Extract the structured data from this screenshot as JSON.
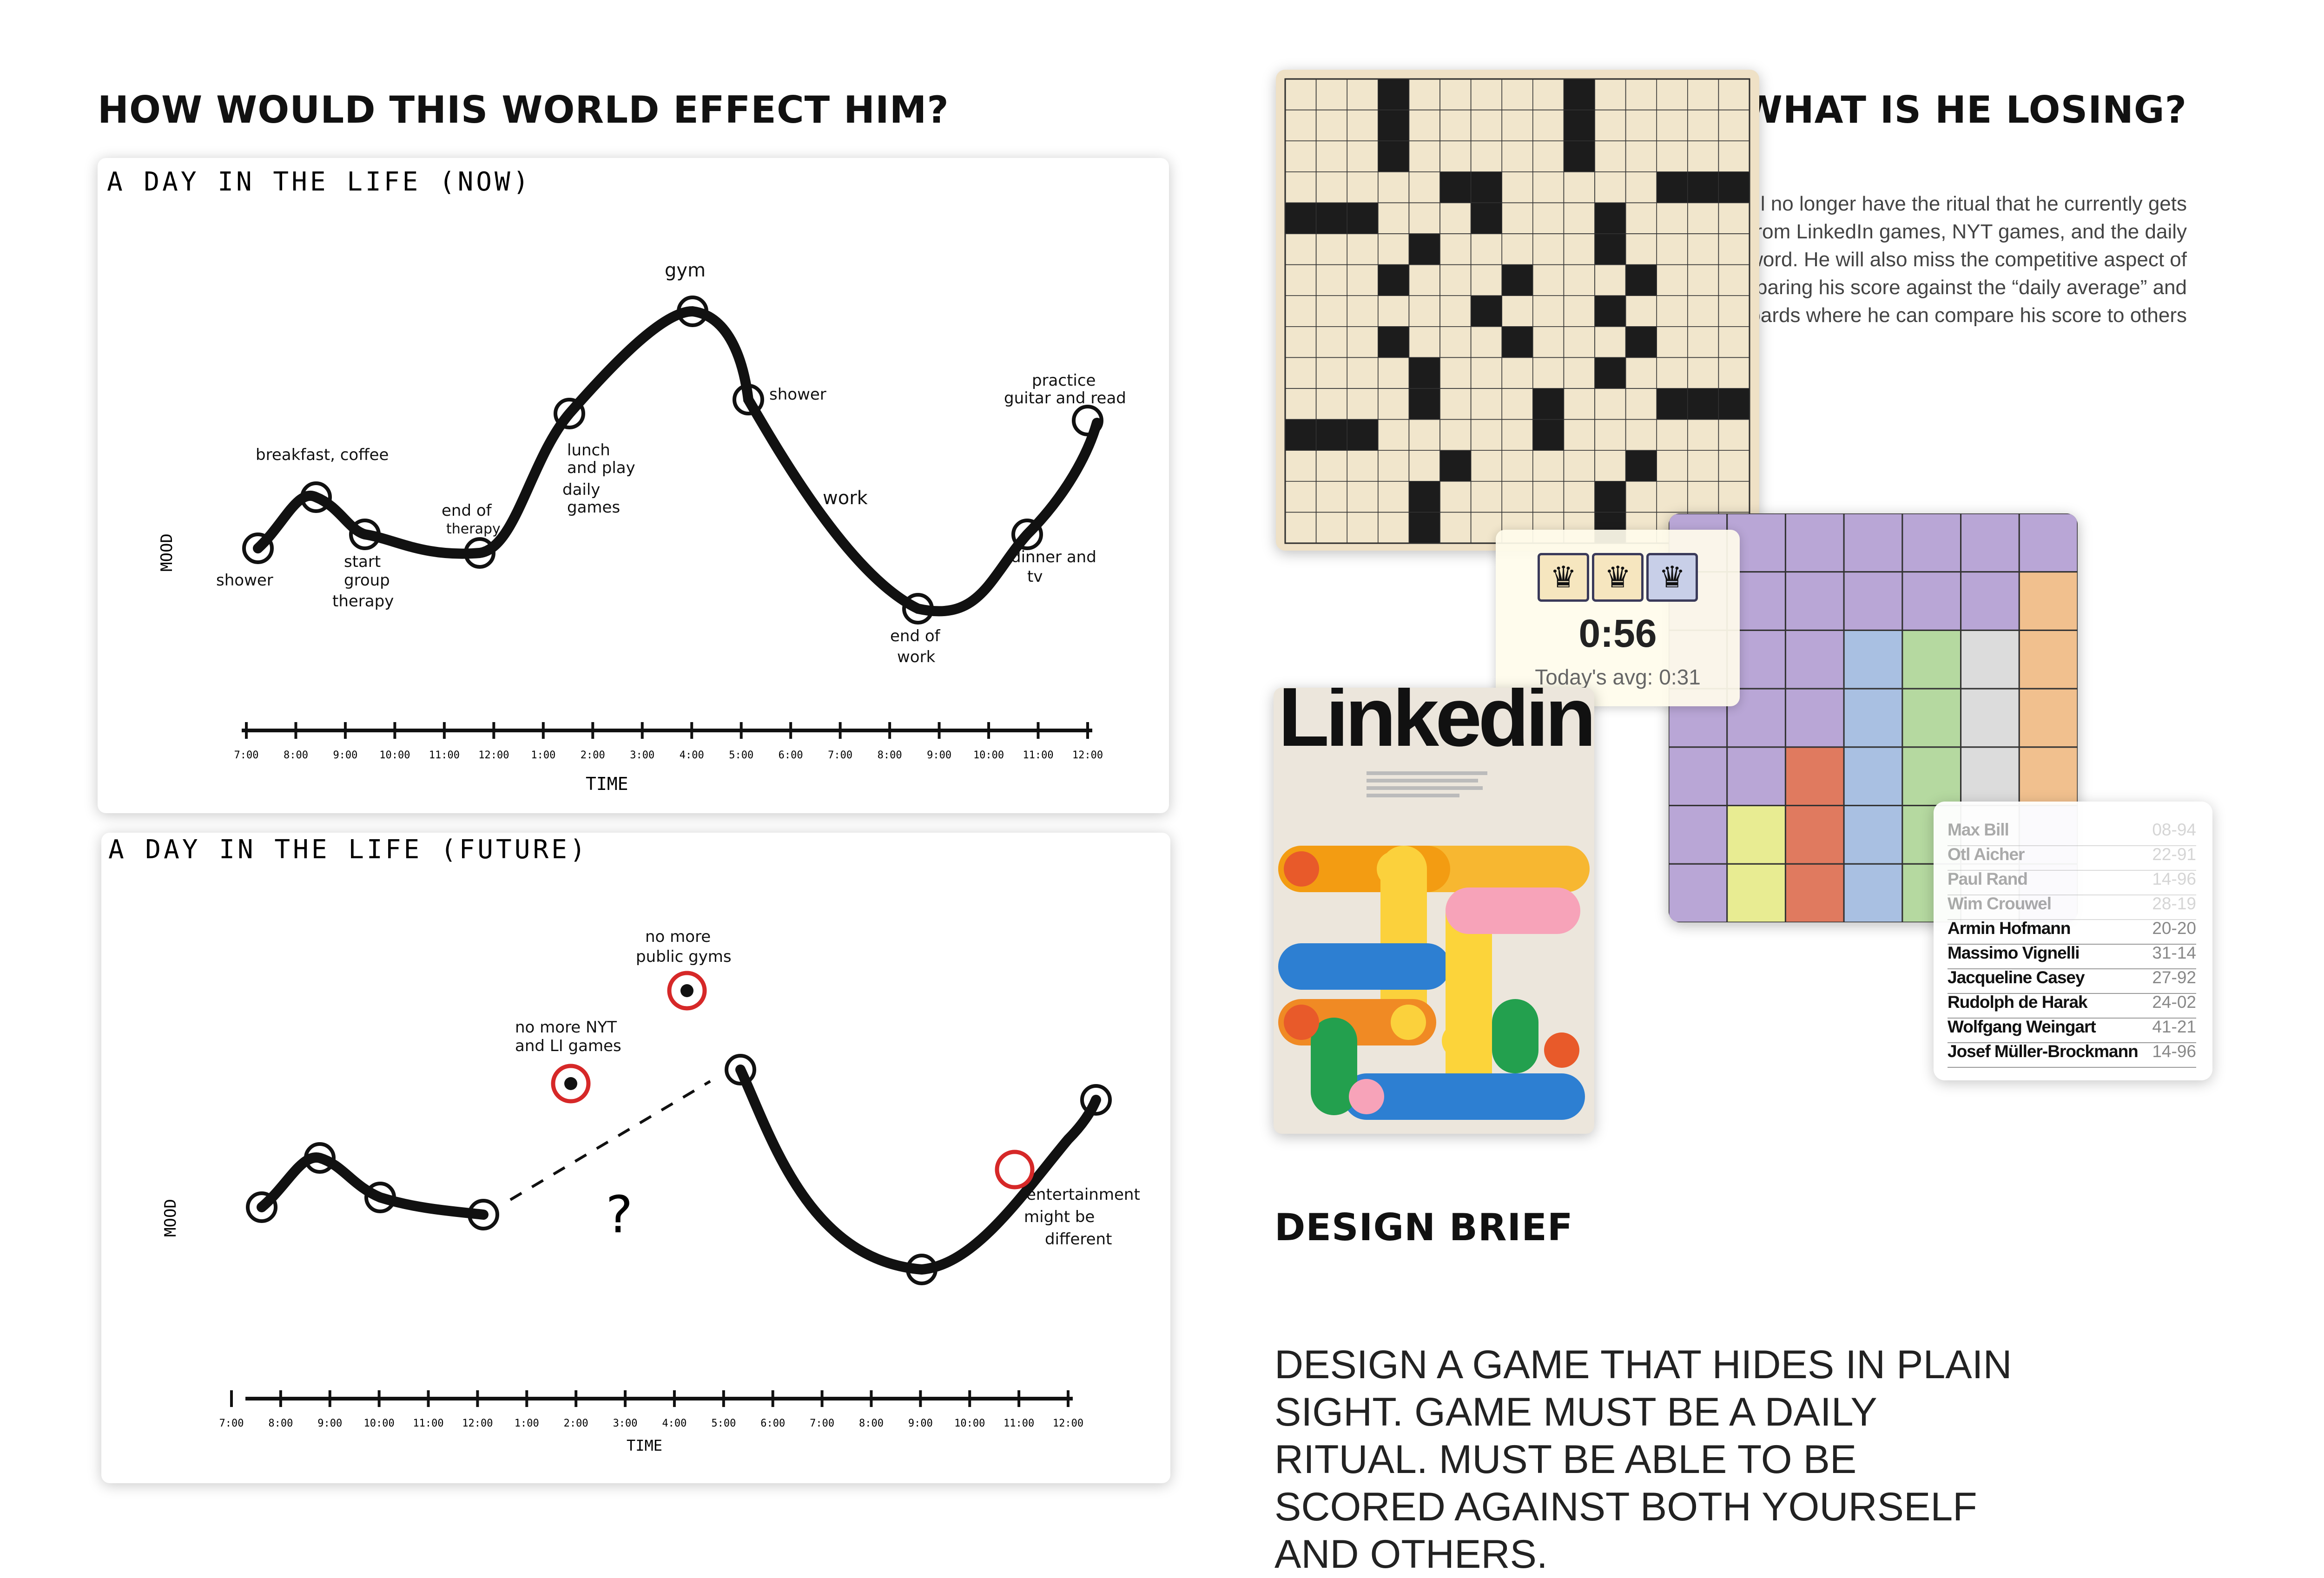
{
  "left": {
    "heading": "HOW WOULD THIS WORLD EFFECT HIM?",
    "now": {
      "title": "A DAY IN THE LIFE (NOW)",
      "ylabel": "MOOD",
      "xlabel": "TIME",
      "ticks": [
        "7:00",
        "8:00",
        "9:00",
        "10:00",
        "11:00",
        "12:00",
        "1:00",
        "2:00",
        "3:00",
        "4:00",
        "5:00",
        "6:00",
        "7:00",
        "8:00",
        "9:00",
        "10:00",
        "11:00",
        "12:00"
      ],
      "annotations": {
        "shower1": "shower",
        "breakfast": "breakfast, coffee",
        "group1": "start",
        "group2": "group",
        "group3": "therapy",
        "endtherapy1": "end of",
        "endtherapy2": "therapy",
        "lunch1": "lunch",
        "lunch2": "and play",
        "lunch3": "daily",
        "lunch4": "games",
        "gym": "gym",
        "shower2": "shower",
        "work": "work",
        "endwork1": "end of",
        "endwork2": "work",
        "dinner1": "dinner and",
        "dinner2": "tv",
        "practice1": "practice",
        "practice2": "guitar and read"
      }
    },
    "future": {
      "title": "A DAY IN THE LIFE (FUTURE)",
      "ylabel": "MOOD",
      "xlabel": "TIME",
      "question": "?",
      "ticks": [
        "7:00",
        "8:00",
        "9:00",
        "10:00",
        "11:00",
        "12:00",
        "1:00",
        "2:00",
        "3:00",
        "4:00",
        "5:00",
        "6:00",
        "7:00",
        "8:00",
        "9:00",
        "10:00",
        "11:00",
        "12:00"
      ],
      "annotations": {
        "gyms1": "no more",
        "gyms2": "public gyms",
        "nyt1": "no more NYT",
        "nyt2": "and LI games",
        "ent1": "entertainment",
        "ent2": "might be",
        "ent3": "different"
      }
    }
  },
  "losing": {
    "heading": "WHAT IS HE LOSING?",
    "text": "He will no longer have the ritual that he currently gets from LinkedIn games, NYT games, and the daily crossword. He will also miss the competitive aspect of comparing his score against the “daily average” and leaderboards where he can compare his score to others"
  },
  "brief": {
    "heading": "DESIGN BRIEF",
    "text": "DESIGN A GAME THAT HIDES IN PLAIN SIGHT. GAME MUST BE A DAILY RITUAL. MUST BE ABLE TO BE SCORED AGAINST BOTH YOURSELF AND OTHERS."
  },
  "timer": {
    "time": "0:56",
    "avg": "Today's avg: 0:31",
    "crown_icon": "♛"
  },
  "linkedin": {
    "wordmark": "Linkedin"
  },
  "leaderboard": [
    {
      "name": "Max Bill",
      "score": "08-94"
    },
    {
      "name": "Otl Aicher",
      "score": "22-91"
    },
    {
      "name": "Paul Rand",
      "score": "14-96"
    },
    {
      "name": "Wim Crouwel",
      "score": "28-19"
    },
    {
      "name": "Armin Hofmann",
      "score": "20-20"
    },
    {
      "name": "Massimo Vignelli",
      "score": "31-14"
    },
    {
      "name": "Jacqueline Casey",
      "score": "27-92"
    },
    {
      "name": "Rudolph de Harak",
      "score": "24-02"
    },
    {
      "name": "Wolfgang Weingart",
      "score": "41-21"
    },
    {
      "name": "Josef Müller-Brockmann",
      "score": "14-96"
    }
  ],
  "colors": {
    "queens_purple": "#b9a6d6",
    "queens_orange": "#f1c08e",
    "queens_red": "#e07a5f",
    "queens_yellow": "#e8ec92",
    "queens_blue": "#a9c0e2",
    "queens_green": "#b5d9a0",
    "queens_gray": "#dcdcdc"
  }
}
